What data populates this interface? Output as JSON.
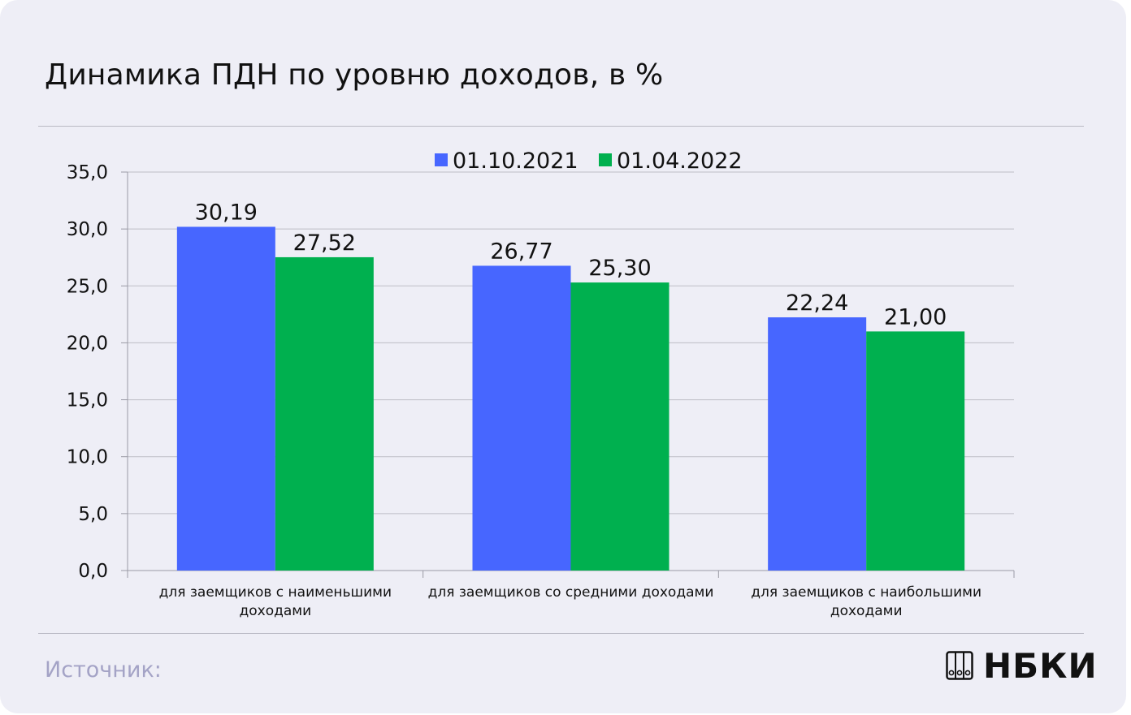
{
  "title": "Динамика ПДН по уровню доходов, в %",
  "source_label": "Источник:",
  "logo_text": "НБКИ",
  "colors": {
    "series_1": "#4766ff",
    "series_2": "#00b04f",
    "background": "#eeeef6",
    "grid": "#bdbdc6"
  },
  "chart_data": {
    "type": "bar",
    "categories": [
      [
        "для заемщиков с наименьшими",
        "доходами"
      ],
      [
        "для заемщиков со средними доходами"
      ],
      [
        "для заемщиков с наибольшими",
        "доходами"
      ]
    ],
    "series": [
      {
        "name": "01.10.2021",
        "values": [
          30.19,
          26.77,
          22.24
        ],
        "labels": [
          "30,19",
          "26,77",
          "22,24"
        ]
      },
      {
        "name": "01.04.2022",
        "values": [
          27.52,
          25.3,
          21.0
        ],
        "labels": [
          "27,52",
          "25,30",
          "21,00"
        ]
      }
    ],
    "ylim": [
      0,
      35
    ],
    "yticks": [
      {
        "value": 0,
        "label": "0,0"
      },
      {
        "value": 5,
        "label": "5,0"
      },
      {
        "value": 10,
        "label": "10,0"
      },
      {
        "value": 15,
        "label": "15,0"
      },
      {
        "value": 20,
        "label": "20,0"
      },
      {
        "value": 25,
        "label": "25,0"
      },
      {
        "value": 30,
        "label": "30,0"
      },
      {
        "value": 35,
        "label": "35,0"
      }
    ],
    "grid": true,
    "legend_position": "top-center"
  }
}
